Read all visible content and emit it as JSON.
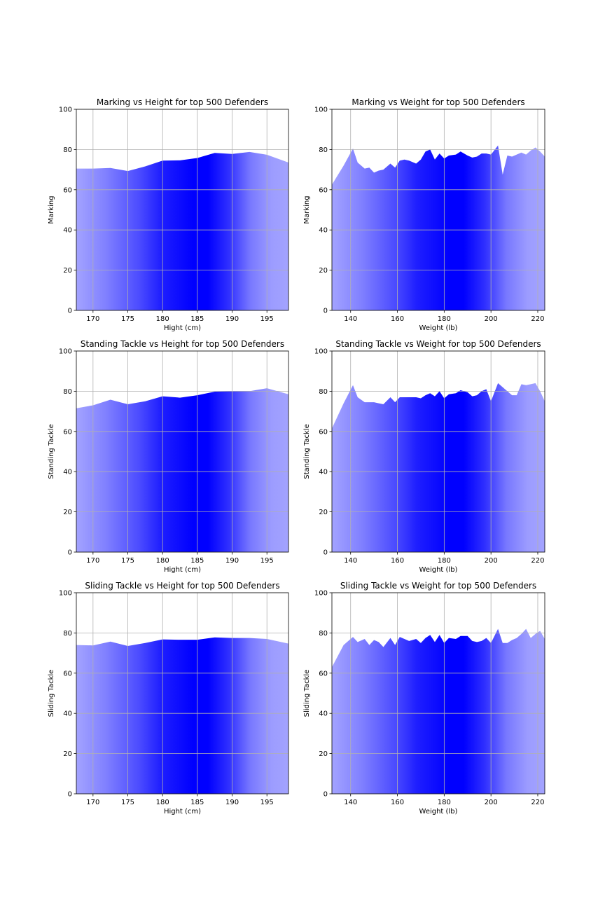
{
  "chart_data": [
    {
      "type": "area",
      "title": "Marking vs Height for top 500 Defenders",
      "xlabel": "Hight (cm)",
      "ylabel": "Marking",
      "xlim": [
        167.6,
        198.1
      ],
      "ylim": [
        0,
        100
      ],
      "xticks": [
        170,
        175,
        180,
        185,
        190,
        195
      ],
      "yticks": [
        0,
        20,
        40,
        60,
        80,
        100
      ],
      "grid": true,
      "x": [
        167.6,
        170,
        172.5,
        175,
        177.5,
        180,
        182.5,
        185,
        187.5,
        190,
        192.5,
        195,
        198.1
      ],
      "y": [
        70.5,
        70.5,
        70.8,
        69.3,
        71.6,
        74.5,
        74.6,
        75.8,
        78.3,
        77.8,
        78.8,
        77.4,
        73.5
      ]
    },
    {
      "type": "area",
      "title": "Marking vs Weight for top 500 Defenders",
      "xlabel": "Weight (lb)",
      "ylabel": "Marking",
      "xlim": [
        132,
        223
      ],
      "ylim": [
        0,
        100
      ],
      "xticks": [
        140,
        160,
        180,
        200,
        220
      ],
      "yticks": [
        0,
        20,
        40,
        60,
        80,
        100
      ],
      "grid": true,
      "x": [
        132,
        137,
        141,
        143,
        146,
        148,
        150,
        152,
        154,
        157,
        159,
        161,
        163,
        165,
        168,
        170,
        172,
        174,
        176,
        178,
        180,
        182,
        185,
        187,
        190,
        192,
        194,
        196,
        198,
        200,
        203,
        205,
        207,
        209,
        211,
        213,
        215,
        217,
        219,
        221,
        223
      ],
      "y": [
        62.5,
        72,
        80.5,
        73.5,
        70.5,
        71,
        68.5,
        69.5,
        70,
        73,
        71,
        74.5,
        75,
        74.5,
        73,
        75,
        79,
        80,
        75,
        78,
        75.5,
        77,
        77.5,
        79,
        77,
        76,
        76.5,
        78,
        78,
        77.5,
        82,
        67.5,
        77,
        76.5,
        77.5,
        78.5,
        77.5,
        79.5,
        81,
        79,
        76.5
      ]
    },
    {
      "type": "area",
      "title": "Standing Tackle vs Height for top 500 Defenders",
      "xlabel": "Hight (cm)",
      "ylabel": "Standing Tackle",
      "xlim": [
        167.6,
        198.1
      ],
      "ylim": [
        0,
        100
      ],
      "xticks": [
        170,
        175,
        180,
        185,
        190,
        195
      ],
      "yticks": [
        0,
        20,
        40,
        60,
        80,
        100
      ],
      "grid": true,
      "x": [
        167.6,
        170,
        172.5,
        175,
        177.5,
        180,
        182.5,
        185,
        187.5,
        190,
        192.5,
        195,
        198.1
      ],
      "y": [
        71.5,
        73,
        75.8,
        73.5,
        75,
        77.5,
        76.8,
        78,
        79.8,
        80,
        80,
        81.5,
        78.5
      ]
    },
    {
      "type": "area",
      "title": "Standing Tackle vs Weight for top 500 Defenders",
      "xlabel": "Weight (lb)",
      "ylabel": "Standing Tackle",
      "xlim": [
        132,
        223
      ],
      "ylim": [
        0,
        100
      ],
      "xticks": [
        140,
        160,
        180,
        200,
        220
      ],
      "yticks": [
        0,
        20,
        40,
        60,
        80,
        100
      ],
      "grid": true,
      "x": [
        132,
        137,
        141,
        143,
        146,
        148,
        150,
        152,
        154,
        157,
        159,
        161,
        163,
        165,
        168,
        170,
        172,
        174,
        176,
        178,
        180,
        182,
        185,
        187,
        190,
        192,
        194,
        196,
        198,
        200,
        203,
        205,
        207,
        209,
        211,
        213,
        215,
        217,
        219,
        221,
        223
      ],
      "y": [
        61.5,
        74,
        83,
        77,
        74.5,
        74.5,
        74.5,
        74,
        73.5,
        77,
        74.5,
        77,
        77,
        77,
        77,
        76.5,
        78,
        79,
        77.5,
        80,
        76.5,
        78.5,
        79,
        80.5,
        79.5,
        77.5,
        78,
        80,
        81,
        75,
        84,
        82,
        80,
        78,
        78,
        83.5,
        83,
        83.5,
        84,
        80,
        75
      ]
    },
    {
      "type": "area",
      "title": "Sliding Tackle vs Height for top 500 Defenders",
      "xlabel": "Hight (cm)",
      "ylabel": "Sliding Tackle",
      "xlim": [
        167.6,
        198.1
      ],
      "ylim": [
        0,
        100
      ],
      "xticks": [
        170,
        175,
        180,
        185,
        190,
        195
      ],
      "yticks": [
        0,
        20,
        40,
        60,
        80,
        100
      ],
      "grid": true,
      "x": [
        167.6,
        170,
        172.5,
        175,
        177.5,
        180,
        182.5,
        185,
        187.5,
        190,
        192.5,
        195,
        198.1
      ],
      "y": [
        74,
        73.8,
        75.7,
        73.5,
        75,
        76.8,
        76.6,
        76.6,
        77.8,
        77.5,
        77.5,
        77,
        74.7
      ]
    },
    {
      "type": "area",
      "title": "Sliding Tackle vs Weight for top 500 Defenders",
      "xlabel": "Weight (lb)",
      "ylabel": "Sliding Tackle",
      "xlim": [
        132,
        223
      ],
      "ylim": [
        0,
        100
      ],
      "xticks": [
        140,
        160,
        180,
        200,
        220
      ],
      "yticks": [
        0,
        20,
        40,
        60,
        80,
        100
      ],
      "grid": true,
      "x": [
        132,
        137,
        141,
        143,
        146,
        148,
        150,
        152,
        154,
        157,
        159,
        161,
        163,
        165,
        168,
        170,
        172,
        174,
        176,
        178,
        180,
        182,
        185,
        187,
        190,
        192,
        194,
        196,
        198,
        200,
        203,
        205,
        207,
        209,
        211,
        213,
        215,
        217,
        219,
        221,
        223
      ],
      "y": [
        63,
        74,
        78,
        75.5,
        77,
        74,
        76.5,
        75.5,
        73,
        77.5,
        74,
        78,
        77,
        76,
        77,
        75,
        77.5,
        79,
        75.5,
        79,
        75,
        77.5,
        77,
        78.5,
        78.5,
        76,
        75.5,
        76,
        77.5,
        75,
        82,
        75,
        75,
        76.5,
        77.5,
        79.5,
        82,
        77.5,
        79.5,
        81,
        77
      ]
    }
  ]
}
